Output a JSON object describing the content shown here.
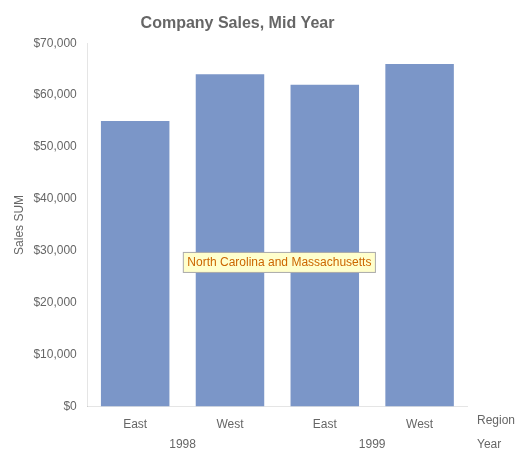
{
  "chart_data": {
    "type": "bar",
    "title": "Company Sales, Mid Year",
    "ylabel": "Sales SUM",
    "xlabel": "Region",
    "group_label": "Year",
    "categories": [
      "East",
      "West",
      "East",
      "West"
    ],
    "category_groups": [
      "1998",
      "1998",
      "1999",
      "1999"
    ],
    "values": [
      55000,
      64000,
      62000,
      66000
    ],
    "color": "#7b96c8",
    "ylim": [
      0,
      70000
    ],
    "yticks": [
      {
        "value": 0,
        "label": "$0"
      },
      {
        "value": 10000,
        "label": "$10,000"
      },
      {
        "value": 20000,
        "label": "$20,000"
      },
      {
        "value": 30000,
        "label": "$30,000"
      },
      {
        "value": 40000,
        "label": "$40,000"
      },
      {
        "value": 50000,
        "label": "$50,000"
      },
      {
        "value": 60000,
        "label": "$60,000"
      },
      {
        "value": 70000,
        "label": "$70,000"
      }
    ],
    "grid": false,
    "annotations": [
      {
        "text": "North Carolina and Massachusetts",
        "x": 0.55,
        "y": 27000,
        "color": "#cc6600"
      }
    ]
  }
}
